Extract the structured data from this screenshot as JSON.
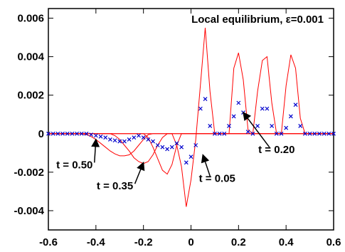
{
  "chart_data": {
    "type": "line",
    "title": "Local equilibrium, ε=0.001",
    "xlabel": "",
    "ylabel": "",
    "xlim": [
      -0.6,
      0.6
    ],
    "ylim": [
      -0.005,
      0.0065
    ],
    "x_ticks": [
      -0.6,
      -0.4,
      -0.2,
      0,
      0.2,
      0.4,
      0.6
    ],
    "x_tick_labels": [
      "-0.6",
      "-0.4",
      "-0.2",
      "0",
      "0.2",
      "0.4",
      "0.6"
    ],
    "y_ticks": [
      -0.004,
      -0.002,
      0,
      0.002,
      0.004,
      0.006
    ],
    "y_tick_labels": [
      "-0.004",
      "-0.002",
      "0",
      "0.002",
      "0.004",
      "0.006"
    ],
    "grid": false,
    "series": [
      {
        "style": "line",
        "color": "#ff0000",
        "points": [
          [
            -0.6,
            0
          ],
          [
            -0.46,
            0
          ],
          [
            -0.44,
            -5e-05
          ],
          [
            -0.42,
            -0.00015
          ],
          [
            -0.4,
            -0.0003
          ],
          [
            -0.38,
            -0.0005
          ],
          [
            -0.36,
            -0.0007
          ],
          [
            -0.34,
            -0.0009
          ],
          [
            -0.32,
            -0.00105
          ],
          [
            -0.3,
            -0.00115
          ],
          [
            -0.28,
            -0.00115
          ],
          [
            -0.26,
            -0.0011
          ],
          [
            -0.24,
            -0.0009
          ],
          [
            -0.22,
            -0.0006
          ],
          [
            -0.2,
            -0.0003
          ],
          [
            -0.18,
            -5e-05
          ],
          [
            -0.16,
            0
          ],
          [
            -0.12,
            0
          ],
          [
            -0.1,
            0
          ],
          [
            -0.06,
            0
          ],
          [
            -0.04,
            0
          ],
          [
            0,
            0
          ],
          [
            0.02,
            0
          ],
          [
            0.06,
            0
          ],
          [
            0.1,
            0
          ],
          [
            0.14,
            0
          ],
          [
            0.18,
            0
          ],
          [
            0.22,
            0
          ],
          [
            0.26,
            0
          ],
          [
            0.3,
            0
          ],
          [
            0.34,
            0
          ],
          [
            0.38,
            0
          ],
          [
            0.42,
            0
          ],
          [
            0.46,
            0
          ],
          [
            0.6,
            0
          ]
        ]
      },
      {
        "style": "line",
        "color": "#ff0000",
        "points": [
          [
            -0.6,
            0
          ],
          [
            -0.34,
            0
          ],
          [
            -0.32,
            -0.0001
          ],
          [
            -0.3,
            -0.0003
          ],
          [
            -0.28,
            -0.0006
          ],
          [
            -0.26,
            -0.0009
          ],
          [
            -0.24,
            -0.00125
          ],
          [
            -0.22,
            -0.00145
          ],
          [
            -0.2,
            -0.00155
          ],
          [
            -0.18,
            -0.00145
          ],
          [
            -0.16,
            -0.0011
          ],
          [
            -0.14,
            -0.0006
          ],
          [
            -0.12,
            -0.0002
          ],
          [
            -0.1,
            0
          ],
          [
            0.6,
            0
          ]
        ]
      },
      {
        "style": "line",
        "color": "#ff0000",
        "points": [
          [
            -0.6,
            0
          ],
          [
            -0.2,
            0
          ],
          [
            -0.18,
            -0.0002
          ],
          [
            -0.16,
            -0.0007
          ],
          [
            -0.14,
            -0.0013
          ],
          [
            -0.12,
            -0.0019
          ],
          [
            -0.1,
            -0.0021
          ],
          [
            -0.08,
            -0.0016
          ],
          [
            -0.06,
            -0.0006
          ],
          [
            -0.04,
            0
          ],
          [
            0.02,
            0
          ],
          [
            0.04,
            0
          ],
          [
            0.6,
            0
          ]
        ]
      },
      {
        "style": "line",
        "color": "#ff0000",
        "points": [
          [
            -0.6,
            0
          ],
          [
            -0.08,
            0
          ],
          [
            -0.06,
            -0.0006
          ],
          [
            -0.04,
            -0.0017
          ],
          [
            -0.02,
            -0.0038
          ],
          [
            0.0,
            -0.0024
          ],
          [
            0.02,
            -0.0003
          ],
          [
            0.04,
            0.0026
          ],
          [
            0.06,
            0.0055
          ],
          [
            0.08,
            0.0022
          ],
          [
            0.1,
            0
          ],
          [
            0.16,
            0
          ],
          [
            0.18,
            0.0034
          ],
          [
            0.2,
            0.0042
          ],
          [
            0.22,
            0.0028
          ],
          [
            0.24,
            0.0002
          ],
          [
            0.26,
            0
          ],
          [
            0.28,
            0.0022
          ],
          [
            0.3,
            0.0038
          ],
          [
            0.32,
            0.004
          ],
          [
            0.34,
            0.0016
          ],
          [
            0.36,
            0
          ],
          [
            0.38,
            0
          ],
          [
            0.4,
            0.0025
          ],
          [
            0.42,
            0.0041
          ],
          [
            0.44,
            0.0034
          ],
          [
            0.46,
            0.0008
          ],
          [
            0.48,
            0
          ],
          [
            0.6,
            0
          ]
        ]
      },
      {
        "style": "markers",
        "color": "#0000cc",
        "marker": "x",
        "points": [
          [
            -0.6,
            0
          ],
          [
            -0.58,
            0
          ],
          [
            -0.56,
            0
          ],
          [
            -0.54,
            0
          ],
          [
            -0.52,
            0
          ],
          [
            -0.5,
            0
          ],
          [
            -0.48,
            0
          ],
          [
            -0.46,
            0
          ],
          [
            -0.44,
            0
          ],
          [
            -0.42,
            -5e-05
          ],
          [
            -0.4,
            -0.0001
          ],
          [
            -0.38,
            -0.00015
          ],
          [
            -0.36,
            -0.0002
          ],
          [
            -0.34,
            -0.0003
          ],
          [
            -0.32,
            -0.00035
          ],
          [
            -0.3,
            -0.0004
          ],
          [
            -0.28,
            -0.0004
          ],
          [
            -0.26,
            -0.0003
          ],
          [
            -0.24,
            -0.0002
          ],
          [
            -0.22,
            -0.0001
          ],
          [
            -0.2,
            -0.0002
          ],
          [
            -0.18,
            -0.0003
          ],
          [
            -0.16,
            -0.0004
          ],
          [
            -0.14,
            -0.0006
          ],
          [
            -0.12,
            -0.0007
          ],
          [
            -0.1,
            -0.0008
          ],
          [
            -0.08,
            -0.0007
          ],
          [
            -0.06,
            -0.0005
          ],
          [
            -0.04,
            -0.0007
          ],
          [
            -0.02,
            -0.0015
          ],
          [
            0.0,
            -0.0012
          ],
          [
            0.02,
            -0.0006
          ],
          [
            0.04,
            0.0013
          ],
          [
            0.06,
            0.0018
          ],
          [
            0.08,
            0.0004
          ],
          [
            0.1,
            0
          ],
          [
            0.12,
            0
          ],
          [
            0.14,
            0
          ],
          [
            0.16,
            0.0004
          ],
          [
            0.18,
            0.0009
          ],
          [
            0.2,
            0.0016
          ],
          [
            0.22,
            0.0011
          ],
          [
            0.24,
            0.0001
          ],
          [
            0.26,
            0
          ],
          [
            0.28,
            0.0004
          ],
          [
            0.3,
            0.0013
          ],
          [
            0.32,
            0.0013
          ],
          [
            0.34,
            0.0004
          ],
          [
            0.36,
            0
          ],
          [
            0.38,
            0
          ],
          [
            0.4,
            0.0003
          ],
          [
            0.42,
            0.0009
          ],
          [
            0.44,
            0.0015
          ],
          [
            0.46,
            0.0004
          ],
          [
            0.48,
            0
          ],
          [
            0.5,
            0
          ],
          [
            0.52,
            0
          ],
          [
            0.54,
            0
          ],
          [
            0.56,
            0
          ],
          [
            0.58,
            0
          ],
          [
            0.6,
            0
          ]
        ]
      }
    ],
    "annotations": [
      {
        "text": "t = 0.50",
        "label_xy": [
          -0.49,
          -0.0018
        ],
        "arrow_to": [
          -0.4,
          -0.0003
        ]
      },
      {
        "text": "t = 0.35",
        "label_xy": [
          -0.32,
          -0.0029
        ],
        "arrow_to": [
          -0.2,
          -0.0015
        ]
      },
      {
        "text": "t = 0.05",
        "label_xy": [
          0.11,
          -0.0025
        ],
        "arrow_to": [
          0.05,
          -0.0011
        ]
      },
      {
        "text": "t = 0.20",
        "label_xy": [
          0.36,
          -0.001
        ],
        "arrow_to": [
          0.22,
          0.0011
        ]
      }
    ]
  }
}
